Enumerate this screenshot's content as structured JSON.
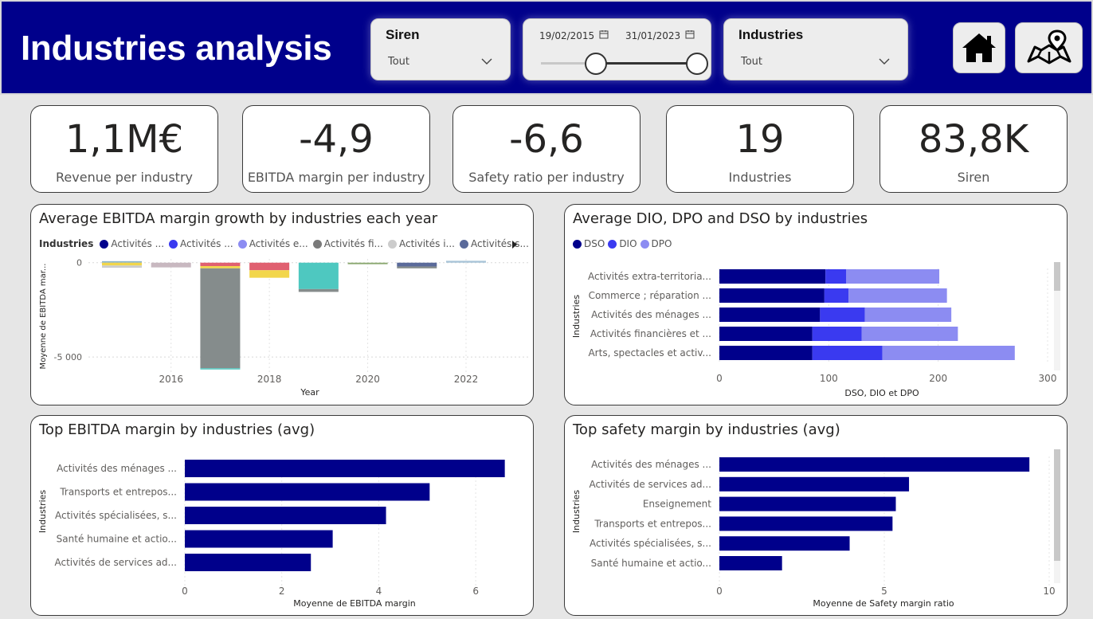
{
  "header": {
    "title": "Industries analysis",
    "background": "#00008b"
  },
  "slicers": {
    "siren": {
      "title": "Siren",
      "value": "Tout",
      "chevron_icon": "chevron-down-icon"
    },
    "date_range": {
      "start": "19/02/2015",
      "end": "31/01/2023",
      "calendar_icon": "calendar-icon"
    },
    "industries": {
      "title": "Industries",
      "value": "Tout",
      "chevron_icon": "chevron-down-icon"
    }
  },
  "nav": {
    "home_icon": "home-icon",
    "map_icon": "map-pin-icon"
  },
  "kpis": [
    {
      "value": "1,1M€",
      "label": "Revenue per industry"
    },
    {
      "value": "-4,9",
      "label": "EBITDA margin per industry"
    },
    {
      "value": "-6,6",
      "label": "Safety ratio per industry"
    },
    {
      "value": "19",
      "label": "Industries"
    },
    {
      "value": "83,8K",
      "label": "Siren"
    }
  ],
  "colors": {
    "primary": "#00008b",
    "dio": "#3a3af0",
    "dpo": "#8c8cf2"
  },
  "charts": {
    "ebitda_growth": {
      "title": "Average EBITDA margin growth by industries each year",
      "legend_title": "Industries",
      "legend": [
        {
          "label": "Activités ...",
          "color": "#00008b"
        },
        {
          "label": "Activités ...",
          "color": "#3a3af0"
        },
        {
          "label": "Activités e...",
          "color": "#8c8cf2"
        },
        {
          "label": "Activités fi...",
          "color": "#7a7a7a"
        },
        {
          "label": "Activités i...",
          "color": "#cccccc"
        },
        {
          "label": "Activités s...",
          "color": "#5a6a9a"
        }
      ],
      "ylabel": "Moyenne de EBITDA mar...",
      "xlabel": "Year"
    },
    "dio_dpo_dso": {
      "title": "Average DIO, DPO and DSO by industries",
      "legend": [
        {
          "label": "DSO",
          "color": "#00008b"
        },
        {
          "label": "DIO",
          "color": "#3a3af0"
        },
        {
          "label": "DPO",
          "color": "#8c8cf2"
        }
      ],
      "ylabel": "Industries",
      "xlabel": "DSO, DIO et DPO"
    },
    "top_ebitda": {
      "title": "Top EBITDA margin by industries (avg)",
      "ylabel": "Industries",
      "xlabel": "Moyenne de EBITDA margin"
    },
    "top_safety": {
      "title": "Top safety margin by industries (avg)",
      "ylabel": "Industries",
      "xlabel": "Moyenne de Safety margin ratio"
    }
  },
  "chart_data": [
    {
      "type": "bar",
      "title": "Average EBITDA margin growth by industries each year",
      "x": [
        2015,
        2016,
        2017,
        2018,
        2019,
        2020,
        2021,
        2022
      ],
      "xticks": [
        "2016",
        "2018",
        "2020",
        "2022"
      ],
      "yticks": [
        "0",
        "-5 000"
      ],
      "ylim": [
        -5800,
        200
      ],
      "stacked": true,
      "segments": [
        [
          {
            "v": 80,
            "c": "#8ab4c8"
          },
          {
            "v": -150,
            "c": "#f2d64b"
          },
          {
            "v": -120,
            "c": "#cccccc"
          }
        ],
        [
          {
            "v": -250,
            "c": "#c8b8c0"
          }
        ],
        [
          {
            "v": -180,
            "c": "#e06070"
          },
          {
            "v": -120,
            "c": "#f2d64b"
          },
          {
            "v": -5300,
            "c": "#858c8c"
          },
          {
            "v": -60,
            "c": "#4ec8c0"
          }
        ],
        [
          {
            "v": -400,
            "c": "#e06070"
          },
          {
            "v": -400,
            "c": "#f2d64b"
          }
        ],
        [
          {
            "v": -1400,
            "c": "#4ec8c0"
          },
          {
            "v": -150,
            "c": "#858c8c"
          }
        ],
        [
          {
            "v": -80,
            "c": "#8aa870"
          }
        ],
        [
          {
            "v": -200,
            "c": "#5a6a9a"
          },
          {
            "v": -100,
            "c": "#858c8c"
          }
        ],
        [
          {
            "v": 100,
            "c": "#a8c4d8"
          }
        ]
      ]
    },
    {
      "type": "bar",
      "orientation": "horizontal",
      "stacked": true,
      "title": "Average DIO, DPO and DSO by industries",
      "categories": [
        "Activités extra-territoria...",
        "Commerce ; réparation ...",
        "Activités des ménages ...",
        "Activités financières et ...",
        "Arts, spectacles et activ..."
      ],
      "series": [
        {
          "name": "DSO",
          "values": [
            97,
            96,
            92,
            85,
            85
          ]
        },
        {
          "name": "DIO",
          "values": [
            19,
            22,
            41,
            45,
            64
          ]
        },
        {
          "name": "DPO",
          "values": [
            85,
            90,
            79,
            88,
            121
          ]
        }
      ],
      "xticks": [
        "0",
        "100",
        "200",
        "300"
      ],
      "xlim": [
        0,
        300
      ]
    },
    {
      "type": "bar",
      "orientation": "horizontal",
      "title": "Top EBITDA margin by industries (avg)",
      "categories": [
        "Activités des ménages ...",
        "Transports et entrepos...",
        "Activités spécialisées, s...",
        "Santé humaine et actio...",
        "Activités de services ad..."
      ],
      "values": [
        6.6,
        5.05,
        4.15,
        3.05,
        2.6
      ],
      "xticks": [
        "0",
        "2",
        "4",
        "6"
      ],
      "xlim": [
        0,
        7
      ]
    },
    {
      "type": "bar",
      "orientation": "horizontal",
      "title": "Top safety margin by industries (avg)",
      "categories": [
        "Activités des ménages ...",
        "Activités de services ad...",
        "Enseignement",
        "Transports et entrepos...",
        "Activités spécialisées, s...",
        "Santé humaine et actio..."
      ],
      "values": [
        9.4,
        5.75,
        5.35,
        5.25,
        3.95,
        1.9
      ],
      "xticks": [
        "0",
        "5",
        "10"
      ],
      "xlim": [
        0,
        10
      ]
    }
  ]
}
